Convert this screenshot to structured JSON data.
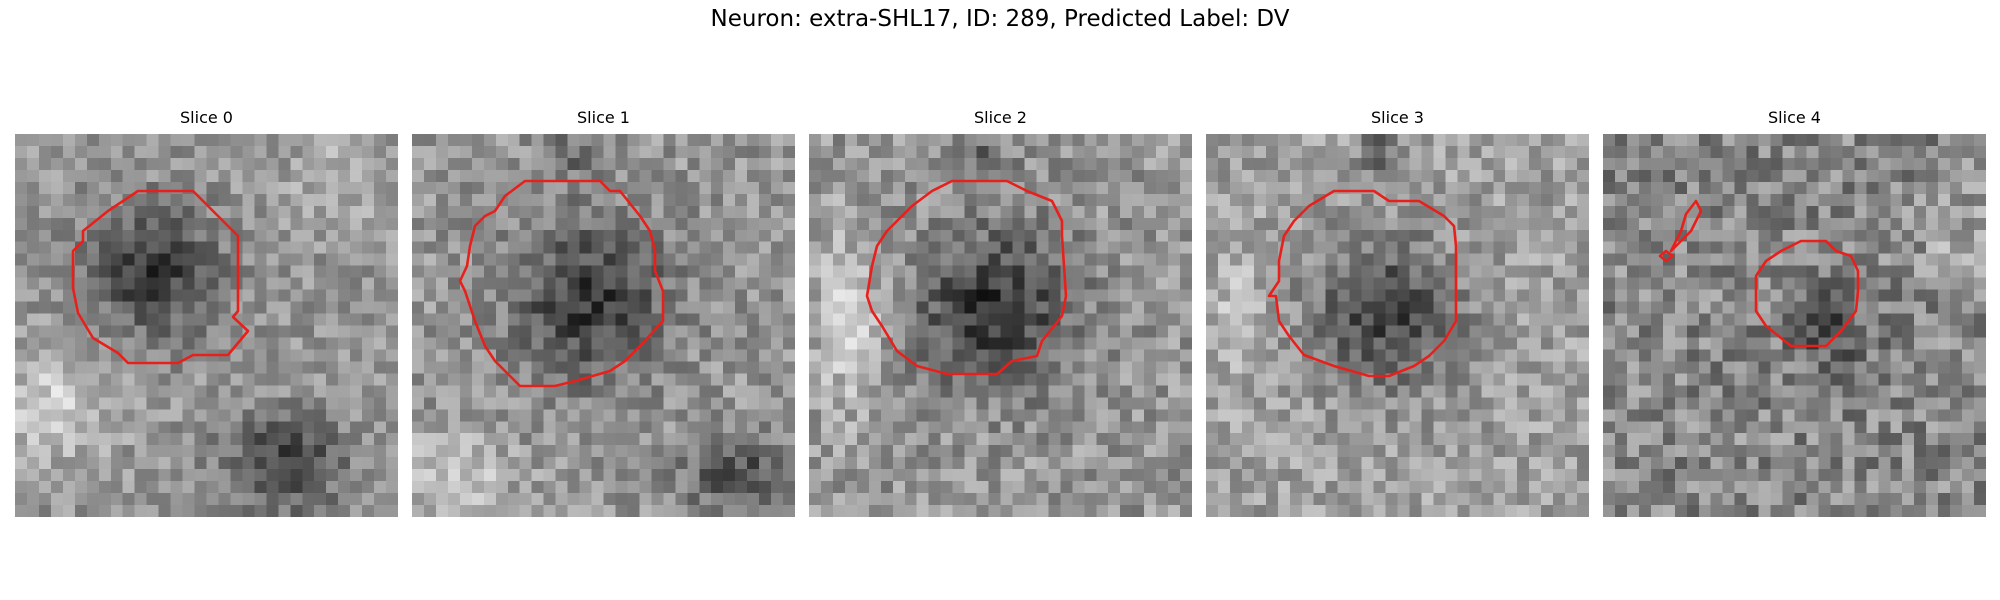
{
  "figure": {
    "title": "Neuron: extra-SHL17, ID: 289, Predicted Label: DV",
    "contour_color": "#e8201c",
    "colormap": "gray"
  },
  "panels": [
    {
      "title": "Slice 0"
    },
    {
      "title": "Slice 1"
    },
    {
      "title": "Slice 2"
    },
    {
      "title": "Slice 3"
    },
    {
      "title": "Slice 4"
    }
  ]
}
